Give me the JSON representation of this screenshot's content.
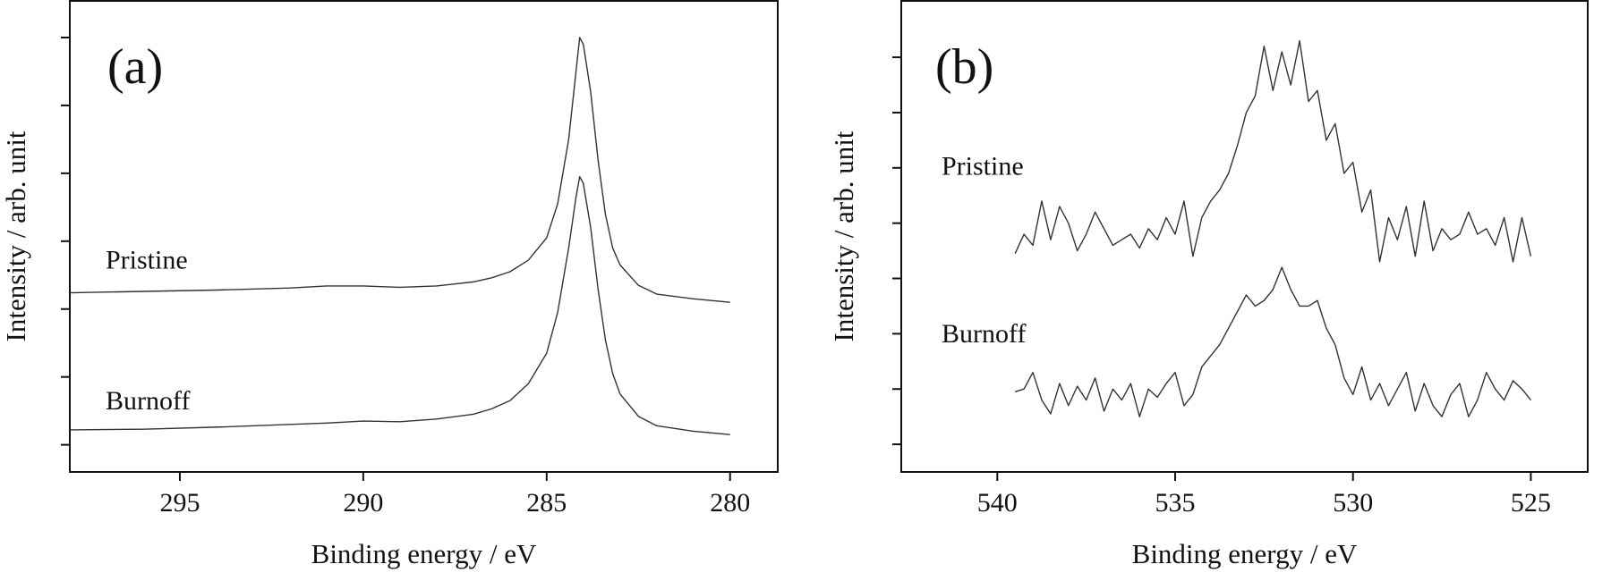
{
  "chart_data": [
    {
      "type": "line",
      "panel_label": "(a)",
      "xlabel": "Binding energy / eV",
      "ylabel": "Intensity / arb. unit",
      "xlim": [
        298,
        278.7
      ],
      "xticks": [
        295,
        290,
        285,
        280
      ],
      "ylim": [
        0,
        6.94
      ],
      "yticks": [
        0.4,
        1.4,
        2.4,
        3.4,
        4.4,
        5.4,
        6.4
      ],
      "x": [
        298,
        296,
        294,
        292,
        291,
        290,
        289,
        288,
        287,
        286.5,
        286,
        285.5,
        285,
        284.7,
        284.4,
        284.2,
        284.1,
        284.0,
        283.8,
        283.6,
        283.4,
        283.2,
        283,
        282.5,
        282,
        281,
        280
      ],
      "series": [
        {
          "name": "Pristine",
          "color": "#333333",
          "values": [
            2.64,
            2.66,
            2.68,
            2.71,
            2.74,
            2.74,
            2.72,
            2.74,
            2.8,
            2.86,
            2.95,
            3.12,
            3.45,
            3.95,
            4.9,
            5.9,
            6.4,
            6.3,
            5.6,
            4.6,
            3.8,
            3.3,
            3.05,
            2.75,
            2.62,
            2.55,
            2.5
          ]
        },
        {
          "name": "Burnoff",
          "color": "#333333",
          "values": [
            0.62,
            0.63,
            0.66,
            0.7,
            0.72,
            0.75,
            0.74,
            0.78,
            0.85,
            0.93,
            1.05,
            1.3,
            1.75,
            2.35,
            3.3,
            4.05,
            4.35,
            4.25,
            3.6,
            2.7,
            1.95,
            1.45,
            1.15,
            0.82,
            0.68,
            0.6,
            0.55
          ]
        }
      ]
    },
    {
      "type": "line",
      "panel_label": "(b)",
      "xlabel": "Binding energy / eV",
      "ylabel": "Intensity / arb. unit",
      "xlim": [
        542.7,
        523.4
      ],
      "xticks": [
        540,
        535,
        530,
        525
      ],
      "ylim": [
        0,
        8.52
      ],
      "yticks": [
        0.5,
        1.5,
        2.5,
        3.5,
        4.5,
        5.5,
        6.5,
        7.5
      ],
      "x": [
        539.5,
        539.25,
        539.0,
        538.75,
        538.5,
        538.25,
        538.0,
        537.75,
        537.5,
        537.25,
        537.0,
        536.75,
        536.5,
        536.25,
        536.0,
        535.75,
        535.5,
        535.25,
        535.0,
        534.75,
        534.5,
        534.25,
        534.0,
        533.75,
        533.5,
        533.25,
        533.0,
        532.75,
        532.5,
        532.25,
        532.0,
        531.75,
        531.5,
        531.25,
        531.0,
        530.75,
        530.5,
        530.25,
        530.0,
        529.75,
        529.5,
        529.25,
        529.0,
        528.75,
        528.5,
        528.25,
        528.0,
        527.75,
        527.5,
        527.25,
        527.0,
        526.75,
        526.5,
        526.25,
        526.0,
        525.75,
        525.5,
        525.25,
        525.0
      ],
      "series": [
        {
          "name": "Pristine",
          "color": "#333333",
          "values": [
            3.95,
            4.3,
            4.1,
            4.9,
            4.2,
            4.8,
            4.5,
            4.0,
            4.3,
            4.7,
            4.4,
            4.1,
            4.2,
            4.3,
            4.05,
            4.4,
            4.2,
            4.6,
            4.3,
            4.9,
            3.9,
            4.6,
            4.9,
            5.1,
            5.4,
            5.9,
            6.5,
            6.8,
            7.7,
            6.9,
            7.6,
            7.0,
            7.8,
            6.7,
            6.9,
            6.0,
            6.3,
            5.4,
            5.6,
            4.7,
            5.1,
            3.8,
            4.6,
            4.2,
            4.8,
            3.9,
            4.9,
            4.0,
            4.4,
            4.2,
            4.3,
            4.7,
            4.3,
            4.4,
            4.1,
            4.6,
            3.8,
            4.6,
            3.9
          ]
        },
        {
          "name": "Burnoff",
          "color": "#333333",
          "values": [
            1.45,
            1.5,
            1.8,
            1.3,
            1.05,
            1.6,
            1.2,
            1.55,
            1.3,
            1.7,
            1.1,
            1.5,
            1.3,
            1.6,
            1.0,
            1.5,
            1.35,
            1.6,
            1.8,
            1.2,
            1.4,
            1.9,
            2.1,
            2.3,
            2.6,
            2.9,
            3.2,
            3.0,
            3.1,
            3.3,
            3.7,
            3.3,
            3.0,
            3.0,
            3.1,
            2.6,
            2.3,
            1.7,
            1.4,
            1.9,
            1.3,
            1.6,
            1.2,
            1.5,
            1.8,
            1.1,
            1.6,
            1.2,
            1.0,
            1.4,
            1.6,
            1.0,
            1.3,
            1.8,
            1.5,
            1.3,
            1.65,
            1.5,
            1.3
          ]
        }
      ]
    }
  ]
}
